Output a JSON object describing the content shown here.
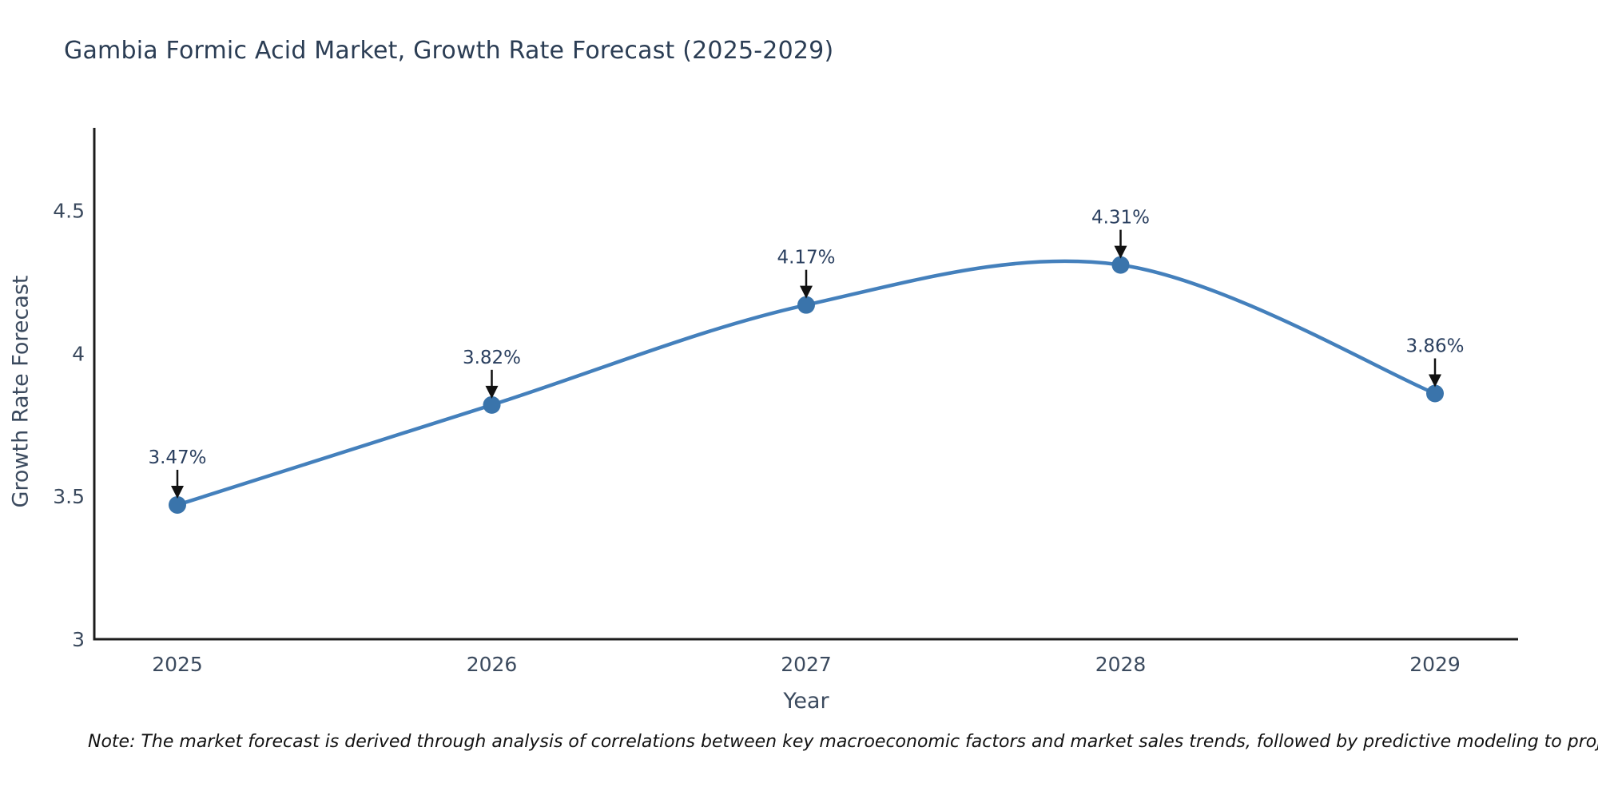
{
  "title": "Gambia Formic Acid Market, Growth Rate Forecast (2025-2029)",
  "note": "Note: The market forecast is derived through analysis of correlations between key macroeconomic factors and market sales trends, followed by predictive modeling to project future sales",
  "chart_data": {
    "type": "line",
    "line_shape": "spline",
    "x": [
      "2025",
      "2026",
      "2027",
      "2028",
      "2029"
    ],
    "values": [
      3.47,
      3.82,
      4.17,
      4.31,
      3.86
    ],
    "point_labels": [
      "3.47%",
      "3.82%",
      "4.17%",
      "4.31%",
      "3.86%"
    ],
    "title": "Gambia Formic Acid Market, Growth Rate Forecast (2025-2029)",
    "xlabel": "Year",
    "ylabel": "Growth Rate Forecast",
    "yticks": [
      3,
      3.5,
      4,
      4.5
    ],
    "ylim": [
      3,
      4.79
    ],
    "grid": false,
    "legend_position": "none",
    "markers": true,
    "annotations_arrows": true,
    "colors": {
      "line": "#4480bc",
      "marker": "#3a74ab",
      "arrow": "#111111",
      "axis": "#1c1c1c",
      "tick_text": "#3b4a5e",
      "title_text": "#2b3d54"
    }
  }
}
